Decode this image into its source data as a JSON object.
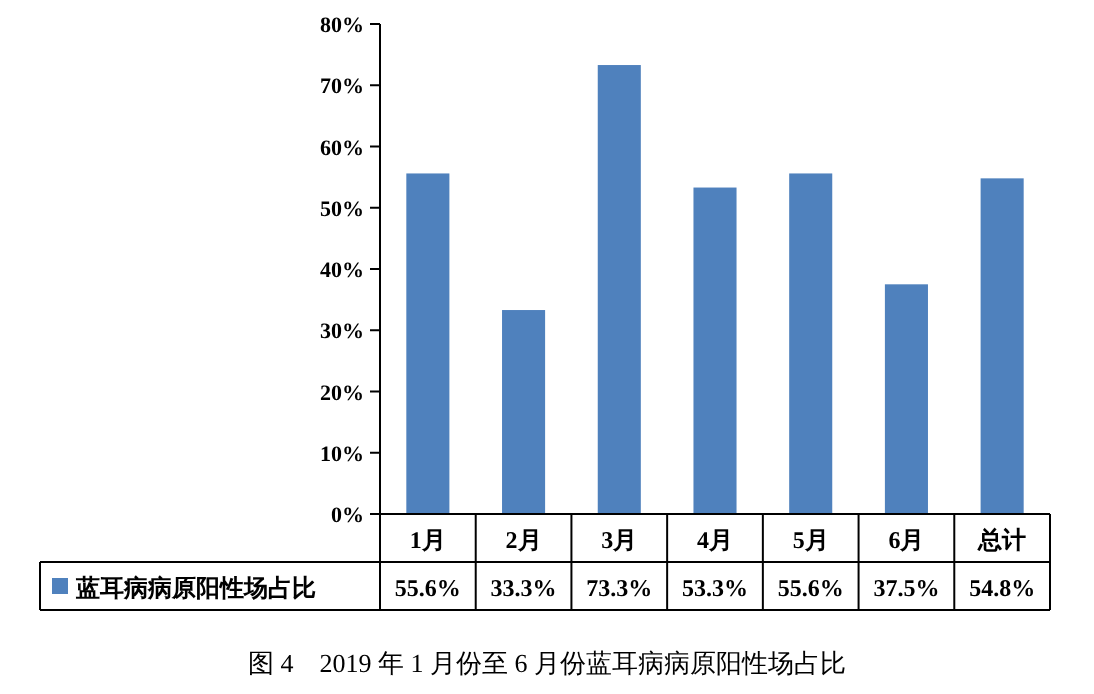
{
  "chart_data": {
    "type": "bar",
    "title": "图 4　2019 年 1 月份至 6 月份蓝耳病病原阳性场占比",
    "categories": [
      "1月",
      "2月",
      "3月",
      "4月",
      "5月",
      "6月",
      "总计"
    ],
    "series": [
      {
        "name": "蓝耳病病原阳性场占比",
        "color": "#4f81bd",
        "values": [
          55.6,
          33.3,
          73.3,
          53.3,
          55.6,
          37.5,
          54.8
        ],
        "value_labels": [
          "55.6%",
          "33.3%",
          "73.3%",
          "53.3%",
          "55.6%",
          "37.5%",
          "54.8%"
        ]
      }
    ],
    "ylim": [
      0,
      80
    ],
    "yticks": [
      {
        "value": 0,
        "label": "0%"
      },
      {
        "value": 10,
        "label": "10%"
      },
      {
        "value": 20,
        "label": "20%"
      },
      {
        "value": 30,
        "label": "30%"
      },
      {
        "value": 40,
        "label": "40%"
      },
      {
        "value": 50,
        "label": "50%"
      },
      {
        "value": 60,
        "label": "60%"
      },
      {
        "value": 70,
        "label": "70%"
      },
      {
        "value": 80,
        "label": "80%"
      }
    ],
    "grid": false,
    "legend": "bottom left"
  }
}
